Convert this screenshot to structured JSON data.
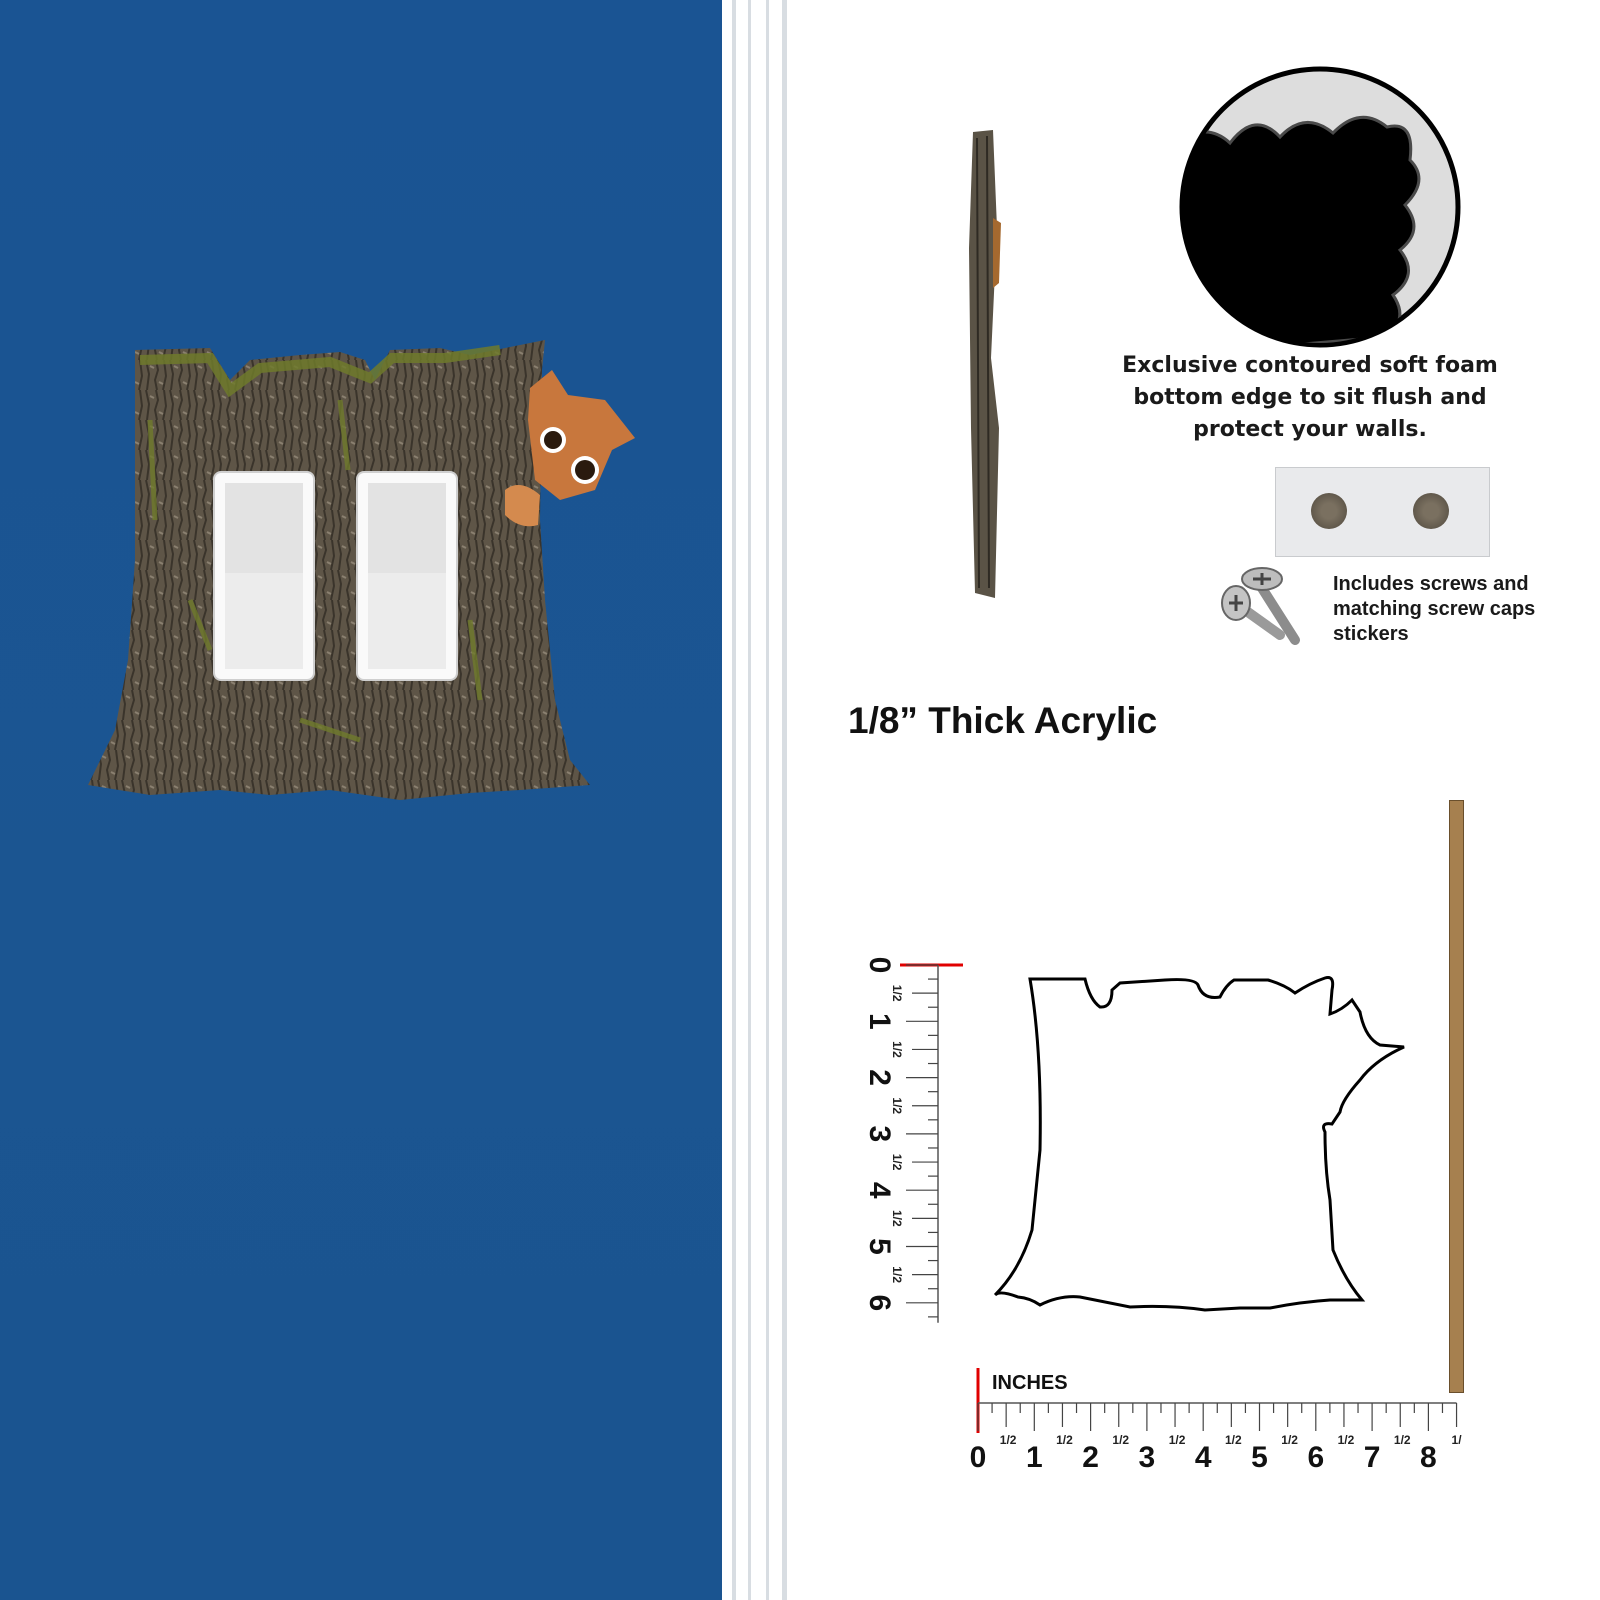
{
  "product": {
    "foam_caption": "Exclusive contoured soft foam bottom edge to sit flush and protect your walls.",
    "screws_caption": "Includes screws and matching screw caps stickers",
    "thickness_title": "1/8” Thick Acrylic"
  },
  "ruler": {
    "unit_label": "INCHES",
    "horizontal_numbers": [
      "0",
      "1",
      "2",
      "3",
      "4",
      "5",
      "6",
      "7",
      "8"
    ],
    "vertical_numbers": [
      "0",
      "1",
      "2",
      "3",
      "4",
      "5",
      "6"
    ],
    "half_label": "1/2",
    "end_half_label": "1/"
  },
  "colors": {
    "wall": "#1a5493",
    "bark": "#5e5547",
    "moss": "#6f7a2c",
    "ruler_zero": "#e00000",
    "edge_strip": "#a6804f"
  }
}
